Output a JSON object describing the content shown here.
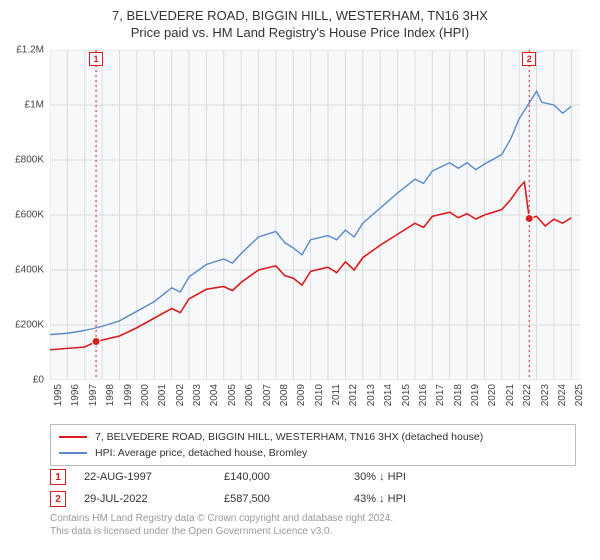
{
  "title": {
    "line1": "7, BELVEDERE ROAD, BIGGIN HILL, WESTERHAM, TN16 3HX",
    "line2": "Price paid vs. HM Land Registry's House Price Index (HPI)"
  },
  "chart": {
    "type": "line",
    "background_color": "#f7f8fa",
    "grid_color": "#d8dce2",
    "y_axis": {
      "min": 0,
      "max": 1200000,
      "ticks": [
        {
          "v": 0,
          "label": "£0"
        },
        {
          "v": 200000,
          "label": "£200K"
        },
        {
          "v": 400000,
          "label": "£400K"
        },
        {
          "v": 600000,
          "label": "£600K"
        },
        {
          "v": 800000,
          "label": "£800K"
        },
        {
          "v": 1000000,
          "label": "£1M"
        },
        {
          "v": 1200000,
          "label": "£1.2M"
        }
      ]
    },
    "x_axis": {
      "min": 1995,
      "max": 2025.5,
      "ticks": [
        1995,
        1996,
        1997,
        1998,
        1999,
        2000,
        2001,
        2002,
        2003,
        2004,
        2005,
        2006,
        2007,
        2008,
        2009,
        2010,
        2011,
        2012,
        2013,
        2014,
        2015,
        2016,
        2017,
        2018,
        2019,
        2020,
        2021,
        2022,
        2023,
        2024,
        2025
      ]
    },
    "series": [
      {
        "name": "price_paid",
        "color": "#d91c1c",
        "width": 1.6,
        "points": [
          [
            1995,
            110000
          ],
          [
            1996,
            115000
          ],
          [
            1997,
            120000
          ],
          [
            1997.65,
            140000
          ],
          [
            1998,
            145000
          ],
          [
            1999,
            160000
          ],
          [
            2000,
            190000
          ],
          [
            2001,
            225000
          ],
          [
            2002,
            260000
          ],
          [
            2002.5,
            245000
          ],
          [
            2003,
            295000
          ],
          [
            2004,
            330000
          ],
          [
            2005,
            340000
          ],
          [
            2005.5,
            325000
          ],
          [
            2006,
            355000
          ],
          [
            2007,
            400000
          ],
          [
            2008,
            415000
          ],
          [
            2008.5,
            380000
          ],
          [
            2009,
            370000
          ],
          [
            2009.5,
            345000
          ],
          [
            2010,
            395000
          ],
          [
            2011,
            410000
          ],
          [
            2011.5,
            390000
          ],
          [
            2012,
            430000
          ],
          [
            2012.5,
            400000
          ],
          [
            2013,
            445000
          ],
          [
            2014,
            490000
          ],
          [
            2015,
            530000
          ],
          [
            2016,
            570000
          ],
          [
            2016.5,
            555000
          ],
          [
            2017,
            595000
          ],
          [
            2018,
            610000
          ],
          [
            2018.5,
            590000
          ],
          [
            2019,
            605000
          ],
          [
            2019.5,
            585000
          ],
          [
            2020,
            600000
          ],
          [
            2021,
            620000
          ],
          [
            2021.5,
            655000
          ],
          [
            2022,
            700000
          ],
          [
            2022.3,
            720000
          ],
          [
            2022.58,
            587500
          ],
          [
            2023,
            595000
          ],
          [
            2023.5,
            560000
          ],
          [
            2024,
            585000
          ],
          [
            2024.5,
            570000
          ],
          [
            2025,
            590000
          ]
        ]
      },
      {
        "name": "hpi",
        "color": "#5b88c7",
        "width": 1.4,
        "points": [
          [
            1995,
            165000
          ],
          [
            1996,
            170000
          ],
          [
            1997,
            180000
          ],
          [
            1998,
            195000
          ],
          [
            1999,
            215000
          ],
          [
            2000,
            250000
          ],
          [
            2001,
            285000
          ],
          [
            2002,
            335000
          ],
          [
            2002.5,
            320000
          ],
          [
            2003,
            375000
          ],
          [
            2004,
            420000
          ],
          [
            2005,
            440000
          ],
          [
            2005.5,
            425000
          ],
          [
            2006,
            460000
          ],
          [
            2007,
            520000
          ],
          [
            2008,
            540000
          ],
          [
            2008.5,
            500000
          ],
          [
            2009,
            480000
          ],
          [
            2009.5,
            455000
          ],
          [
            2010,
            510000
          ],
          [
            2011,
            525000
          ],
          [
            2011.5,
            510000
          ],
          [
            2012,
            545000
          ],
          [
            2012.5,
            520000
          ],
          [
            2013,
            570000
          ],
          [
            2014,
            625000
          ],
          [
            2015,
            680000
          ],
          [
            2016,
            730000
          ],
          [
            2016.5,
            715000
          ],
          [
            2017,
            760000
          ],
          [
            2018,
            790000
          ],
          [
            2018.5,
            770000
          ],
          [
            2019,
            790000
          ],
          [
            2019.5,
            765000
          ],
          [
            2020,
            785000
          ],
          [
            2021,
            820000
          ],
          [
            2021.5,
            875000
          ],
          [
            2022,
            950000
          ],
          [
            2022.5,
            1000000
          ],
          [
            2023,
            1050000
          ],
          [
            2023.3,
            1010000
          ],
          [
            2024,
            1000000
          ],
          [
            2024.5,
            970000
          ],
          [
            2025,
            995000
          ]
        ]
      }
    ],
    "markers": [
      {
        "n": "1",
        "x": 1997.65,
        "y": 140000,
        "color": "#d91c1c"
      },
      {
        "n": "2",
        "x": 2022.58,
        "y": 587500,
        "color": "#d91c1c"
      }
    ]
  },
  "legend": {
    "items": [
      {
        "color": "#d91c1c",
        "label": "7, BELVEDERE ROAD, BIGGIN HILL, WESTERHAM, TN16 3HX (detached house)"
      },
      {
        "color": "#5b88c7",
        "label": "HPI: Average price, detached house, Bromley"
      }
    ]
  },
  "marker_rows": [
    {
      "n": "1",
      "color": "#d91c1c",
      "date": "22-AUG-1997",
      "price": "£140,000",
      "pct": "30% ↓ HPI"
    },
    {
      "n": "2",
      "color": "#d91c1c",
      "date": "29-JUL-2022",
      "price": "£587,500",
      "pct": "43% ↓ HPI"
    }
  ],
  "footer": {
    "line1": "Contains HM Land Registry data © Crown copyright and database right 2024.",
    "line2": "This data is licensed under the Open Government Licence v3.0."
  }
}
